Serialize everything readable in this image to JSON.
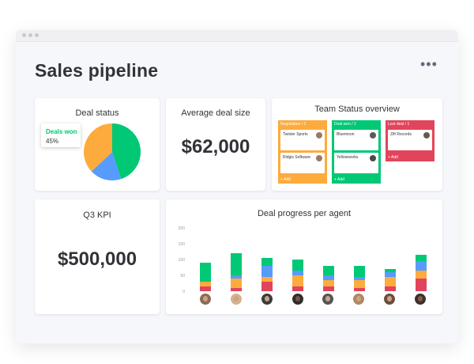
{
  "page": {
    "title": "Sales pipeline",
    "more_label": "•••"
  },
  "deal_status": {
    "title": "Deal status",
    "tooltip_label": "Deals won",
    "tooltip_value": "45%",
    "slices": [
      {
        "color": "#00c875",
        "value": 45
      },
      {
        "color": "#579bfc",
        "value": 18
      },
      {
        "color": "#fdab3d",
        "value": 37
      }
    ]
  },
  "avg_deal": {
    "title": "Average deal size",
    "value": "$62,000"
  },
  "team_status": {
    "title": "Team Status overview",
    "columns": [
      {
        "label": "Negotiation / 2",
        "color": "#fdab3d",
        "add": "+ Add",
        "cards": [
          {
            "text": "Twister Sports"
          },
          {
            "text": "Ridgis Software"
          }
        ]
      },
      {
        "label": "Deal won / 2",
        "color": "#00c875",
        "add": "+ Add",
        "cards": [
          {
            "text": "Bluemoon"
          },
          {
            "text": "Yellowworks"
          }
        ]
      },
      {
        "label": "Lost deal / 1",
        "color": "#e2445c",
        "add": "+ Add",
        "cards": [
          {
            "text": "Zift Records"
          }
        ]
      }
    ]
  },
  "q3_kpi": {
    "title": "Q3 KPI",
    "value": "$500,000"
  },
  "deal_progress": {
    "title": "Deal progress per agent",
    "y_ticks": [
      "200",
      "150",
      "100",
      "50",
      "0"
    ]
  },
  "chart_data": {
    "type": "bar",
    "title": "Deal progress per agent",
    "xlabel": "",
    "ylabel": "",
    "ylim": [
      0,
      200
    ],
    "stacked": true,
    "categories": [
      "",
      "",
      "",
      "",
      "",
      "",
      "",
      ""
    ],
    "series": [
      {
        "color": "#e2445c",
        "values": [
          15,
          10,
          30,
          15,
          15,
          10,
          15,
          40
        ]
      },
      {
        "color": "#fdab3d",
        "values": [
          15,
          30,
          15,
          35,
          20,
          25,
          30,
          25
        ]
      },
      {
        "color": "#579bfc",
        "values": [
          0,
          10,
          35,
          15,
          15,
          10,
          15,
          30
        ]
      },
      {
        "color": "#00c875",
        "values": [
          60,
          70,
          25,
          35,
          30,
          35,
          10,
          20
        ]
      }
    ]
  }
}
